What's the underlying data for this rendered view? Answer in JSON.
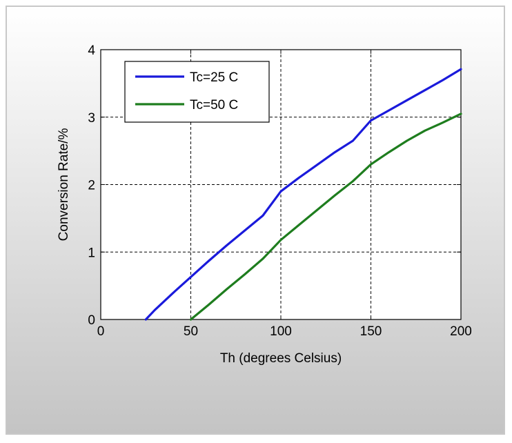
{
  "chart_data": {
    "type": "line",
    "title": "",
    "xlabel": "Th (degrees Celsius)",
    "ylabel": "Conversion Rate/%",
    "xlim": [
      0,
      200
    ],
    "ylim": [
      0,
      4
    ],
    "xticks": [
      0,
      50,
      100,
      150,
      200
    ],
    "yticks": [
      0,
      1,
      2,
      3,
      4
    ],
    "grid": true,
    "grid_style": "dashed",
    "legend_position": "top-left",
    "series": [
      {
        "name": "Tc=25 C",
        "color": "#1a1adb",
        "x": [
          25,
          30,
          40,
          50,
          60,
          70,
          80,
          90,
          100,
          110,
          120,
          130,
          140,
          150,
          160,
          170,
          180,
          190,
          200
        ],
        "y": [
          0.0,
          0.14,
          0.39,
          0.63,
          0.87,
          1.1,
          1.32,
          1.54,
          1.9,
          2.1,
          2.29,
          2.48,
          2.65,
          2.95,
          3.1,
          3.25,
          3.4,
          3.55,
          3.71
        ]
      },
      {
        "name": "Tc=50 C",
        "color": "#1e7d1e",
        "x": [
          50,
          60,
          70,
          80,
          90,
          100,
          110,
          120,
          130,
          140,
          150,
          160,
          170,
          180,
          190,
          200
        ],
        "y": [
          0.0,
          0.22,
          0.45,
          0.67,
          0.9,
          1.18,
          1.4,
          1.62,
          1.84,
          2.05,
          2.3,
          2.48,
          2.65,
          2.8,
          2.92,
          3.05
        ]
      }
    ]
  },
  "colors": {
    "frame_gradient_top": "#ffffff",
    "frame_gradient_bottom": "#c4c4c4",
    "plot_background": "#ffffff"
  }
}
